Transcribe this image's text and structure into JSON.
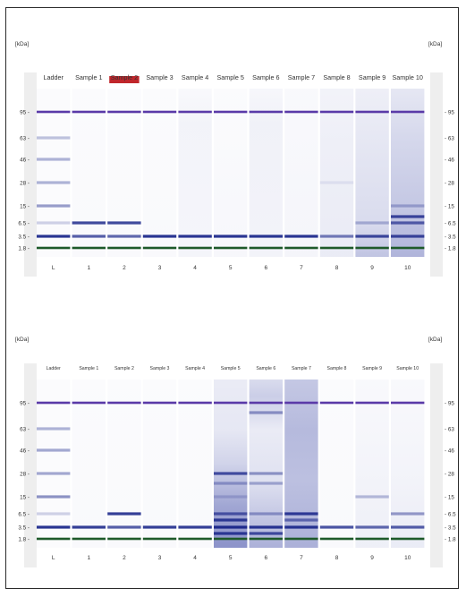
{
  "gels": [
    {
      "unit_left": "[kDa]",
      "unit_right": "[kDa]",
      "label_size": 7.2,
      "header_labels": [
        "Ladder",
        "Sample 1",
        "Sample 2",
        "Sample 3",
        "Sample 4",
        "Sample 5",
        "Sample 6",
        "Sample 7",
        "Sample 8",
        "Sample 9",
        "Sample 10"
      ],
      "lane_numbers": [
        "L",
        "1",
        "2",
        "3",
        "4",
        "5",
        "6",
        "7",
        "8",
        "9",
        "10"
      ],
      "highlight_lane": 2,
      "highlight_color": "#c0262b",
      "ticks": [
        "95",
        "63",
        "46",
        "28",
        "15",
        "6.5",
        "3.5",
        "1.8"
      ],
      "lanes": [
        {
          "bg": [
            [
              0,
              0.02
            ],
            [
              1,
              0.02
            ]
          ],
          "bands": [
            [
              "95",
              1,
              "p"
            ],
            [
              "63",
              0.28,
              "b"
            ],
            [
              "46",
              0.35,
              "b"
            ],
            [
              "28",
              0.35,
              "b"
            ],
            [
              "15",
              0.45,
              "b"
            ],
            [
              "6.5",
              0.2,
              "b"
            ],
            [
              "3.5",
              0.95,
              "b"
            ],
            [
              "1.8",
              1,
              "g"
            ]
          ]
        },
        {
          "bg": [
            [
              0,
              0.02
            ],
            [
              1,
              0.03
            ]
          ],
          "bands": [
            [
              "95",
              1,
              "p"
            ],
            [
              "6.5",
              0.85,
              "b"
            ],
            [
              "3.5",
              0.75,
              "b"
            ],
            [
              "1.8",
              1,
              "g"
            ]
          ]
        },
        {
          "bg": [
            [
              0,
              0.02
            ],
            [
              1,
              0.03
            ]
          ],
          "bands": [
            [
              "95",
              1,
              "p"
            ],
            [
              "6.5",
              0.85,
              "b"
            ],
            [
              "3.5",
              0.7,
              "b"
            ],
            [
              "1.8",
              1,
              "g"
            ]
          ]
        },
        {
          "bg": [
            [
              0,
              0.02
            ],
            [
              1,
              0.03
            ]
          ],
          "bands": [
            [
              "95",
              1,
              "p"
            ],
            [
              "3.5",
              0.95,
              "b"
            ],
            [
              "1.8",
              1,
              "g"
            ]
          ]
        },
        {
          "bg": [
            [
              0,
              0.03
            ],
            [
              0.2,
              0.06
            ],
            [
              1,
              0.05
            ]
          ],
          "bands": [
            [
              "95",
              1,
              "p"
            ],
            [
              "3.5",
              0.95,
              "b"
            ],
            [
              "1.8",
              1,
              "g"
            ]
          ]
        },
        {
          "bg": [
            [
              0,
              0.02
            ],
            [
              1,
              0.04
            ]
          ],
          "bands": [
            [
              "95",
              1,
              "p"
            ],
            [
              "3.5",
              0.95,
              "b"
            ],
            [
              "1.8",
              1,
              "g"
            ]
          ]
        },
        {
          "bg": [
            [
              0,
              0.04
            ],
            [
              0.2,
              0.07
            ],
            [
              1,
              0.06
            ]
          ],
          "bands": [
            [
              "95",
              1,
              "p"
            ],
            [
              "3.5",
              0.95,
              "b"
            ],
            [
              "1.8",
              1,
              "g"
            ]
          ]
        },
        {
          "bg": [
            [
              0,
              0.03
            ],
            [
              1,
              0.05
            ]
          ],
          "bands": [
            [
              "95",
              1,
              "p"
            ],
            [
              "3.5",
              0.95,
              "b"
            ],
            [
              "1.8",
              1,
              "g"
            ]
          ]
        },
        {
          "bg": [
            [
              0,
              0.06
            ],
            [
              0.3,
              0.08
            ],
            [
              1,
              0.1
            ]
          ],
          "bands": [
            [
              "95",
              1,
              "p"
            ],
            [
              "28",
              0.08,
              "b"
            ],
            [
              "3.5",
              0.6,
              "b"
            ],
            [
              "1.8",
              1,
              "g"
            ]
          ]
        },
        {
          "bg": [
            [
              0,
              0.08
            ],
            [
              0.3,
              0.12
            ],
            [
              0.8,
              0.18
            ],
            [
              1,
              0.3
            ]
          ],
          "bands": [
            [
              "95",
              1,
              "p"
            ],
            [
              "6.5",
              0.3,
              "b"
            ],
            [
              "3.5",
              0.85,
              "b"
            ],
            [
              "1.8",
              1,
              "g"
            ]
          ]
        },
        {
          "bg": [
            [
              0,
              0.12
            ],
            [
              0.3,
              0.2
            ],
            [
              0.7,
              0.28
            ],
            [
              1,
              0.38
            ]
          ],
          "bands": [
            [
              "95",
              1,
              "p"
            ],
            [
              "15",
              0.3,
              "b"
            ],
            [
              "10",
              0.85,
              "b"
            ],
            [
              "6.5",
              0.7,
              "b"
            ],
            [
              "3.5",
              0.85,
              "b"
            ],
            [
              "1.8",
              1,
              "g"
            ]
          ]
        }
      ]
    },
    {
      "unit_left": "[kDa]",
      "unit_right": "[kDa]",
      "label_size": 5.2,
      "header_labels": [
        "Ladder",
        "Sample 1",
        "Sample 2",
        "Sample 3",
        "Sample 4",
        "Sample 5",
        "Sample 6",
        "Sample 7",
        "Sample 8",
        "Sample 9",
        "Sample 10"
      ],
      "lane_numbers": [
        "L",
        "1",
        "2",
        "3",
        "4",
        "5",
        "6",
        "7",
        "8",
        "9",
        "10"
      ],
      "highlight_lane": -1,
      "highlight_color": "#c0262b",
      "ticks": [
        "95",
        "63",
        "46",
        "28",
        "15",
        "6.5",
        "3.5",
        "1.8"
      ],
      "lanes": [
        {
          "bg": [
            [
              0,
              0.02
            ],
            [
              1,
              0.02
            ]
          ],
          "bands": [
            [
              "95",
              1,
              "p"
            ],
            [
              "63",
              0.35,
              "b"
            ],
            [
              "46",
              0.4,
              "b"
            ],
            [
              "28",
              0.4,
              "b"
            ],
            [
              "15",
              0.5,
              "b"
            ],
            [
              "6.5",
              0.2,
              "b"
            ],
            [
              "3.5",
              0.95,
              "b"
            ],
            [
              "1.8",
              1,
              "g"
            ]
          ]
        },
        {
          "bg": [
            [
              0,
              0.02
            ],
            [
              1,
              0.03
            ]
          ],
          "bands": [
            [
              "95",
              1,
              "p"
            ],
            [
              "3.5",
              0.9,
              "b"
            ],
            [
              "1.8",
              1,
              "g"
            ]
          ]
        },
        {
          "bg": [
            [
              0,
              0.02
            ],
            [
              1,
              0.03
            ]
          ],
          "bands": [
            [
              "95",
              1,
              "p"
            ],
            [
              "6.5",
              0.9,
              "b"
            ],
            [
              "3.5",
              0.75,
              "b"
            ],
            [
              "1.8",
              1,
              "g"
            ]
          ]
        },
        {
          "bg": [
            [
              0,
              0.02
            ],
            [
              1,
              0.03
            ]
          ],
          "bands": [
            [
              "95",
              1,
              "p"
            ],
            [
              "3.5",
              0.9,
              "b"
            ],
            [
              "1.8",
              1,
              "g"
            ]
          ]
        },
        {
          "bg": [
            [
              0,
              0.02
            ],
            [
              1,
              0.03
            ]
          ],
          "bands": [
            [
              "95",
              1,
              "p"
            ],
            [
              "3.5",
              0.9,
              "b"
            ],
            [
              "1.8",
              1,
              "g"
            ]
          ]
        },
        {
          "bg": [
            [
              0,
              0.1
            ],
            [
              0.3,
              0.12
            ],
            [
              0.5,
              0.22
            ],
            [
              0.75,
              0.45
            ],
            [
              1,
              0.55
            ]
          ],
          "bands": [
            [
              "95",
              1,
              "p"
            ],
            [
              "28",
              0.8,
              "b"
            ],
            [
              "20",
              0.35,
              "b"
            ],
            [
              "15",
              0.2,
              "b"
            ],
            [
              "6.5",
              0.7,
              "b"
            ],
            [
              "5",
              0.9,
              "b"
            ],
            [
              "3.5",
              1,
              "b"
            ],
            [
              "2.5",
              0.9,
              "b"
            ],
            [
              "1.8",
              1,
              "g"
            ]
          ]
        },
        {
          "bg": [
            [
              0,
              0.18
            ],
            [
              0.1,
              0.25
            ],
            [
              0.3,
              0.1
            ],
            [
              0.6,
              0.15
            ],
            [
              1,
              0.4
            ]
          ],
          "bands": [
            [
              "95",
              1,
              "p"
            ],
            [
              "85",
              0.45,
              "b"
            ],
            [
              "28",
              0.45,
              "b"
            ],
            [
              "20",
              0.35,
              "b"
            ],
            [
              "6.5",
              0.4,
              "b"
            ],
            [
              "3.5",
              0.95,
              "b"
            ],
            [
              "2.5",
              0.8,
              "b"
            ],
            [
              "1.8",
              1,
              "g"
            ]
          ]
        },
        {
          "bg": [
            [
              0,
              0.28
            ],
            [
              0.3,
              0.35
            ],
            [
              0.6,
              0.32
            ],
            [
              1,
              0.4
            ]
          ],
          "bands": [
            [
              "95",
              1,
              "p"
            ],
            [
              "6.5",
              0.9,
              "b"
            ],
            [
              "5",
              0.6,
              "b"
            ],
            [
              "3.5",
              0.95,
              "b"
            ],
            [
              "1.8",
              1,
              "g"
            ]
          ]
        },
        {
          "bg": [
            [
              0,
              0.02
            ],
            [
              1,
              0.03
            ]
          ],
          "bands": [
            [
              "95",
              1,
              "p"
            ],
            [
              "3.5",
              0.8,
              "b"
            ],
            [
              "1.8",
              1,
              "g"
            ]
          ]
        },
        {
          "bg": [
            [
              0,
              0.03
            ],
            [
              0.6,
              0.06
            ],
            [
              1,
              0.08
            ]
          ],
          "bands": [
            [
              "95",
              1,
              "p"
            ],
            [
              "15",
              0.3,
              "b"
            ],
            [
              "3.5",
              0.7,
              "b"
            ],
            [
              "1.8",
              1,
              "g"
            ]
          ]
        },
        {
          "bg": [
            [
              0,
              0.03
            ],
            [
              0.6,
              0.06
            ],
            [
              1,
              0.1
            ]
          ],
          "bands": [
            [
              "95",
              1,
              "p"
            ],
            [
              "6.5",
              0.45,
              "b"
            ],
            [
              "3.5",
              0.75,
              "b"
            ],
            [
              "1.8",
              1,
              "g"
            ]
          ]
        }
      ]
    }
  ],
  "colors": {
    "frame": "#2a2a2a",
    "background_tint": "#2e3a9e",
    "band_blue": "#1e2a8c",
    "band_purple": "#5a3aa8",
    "band_green": "#1e5a2a",
    "text": "#333333",
    "strip": "#eeeeee"
  }
}
